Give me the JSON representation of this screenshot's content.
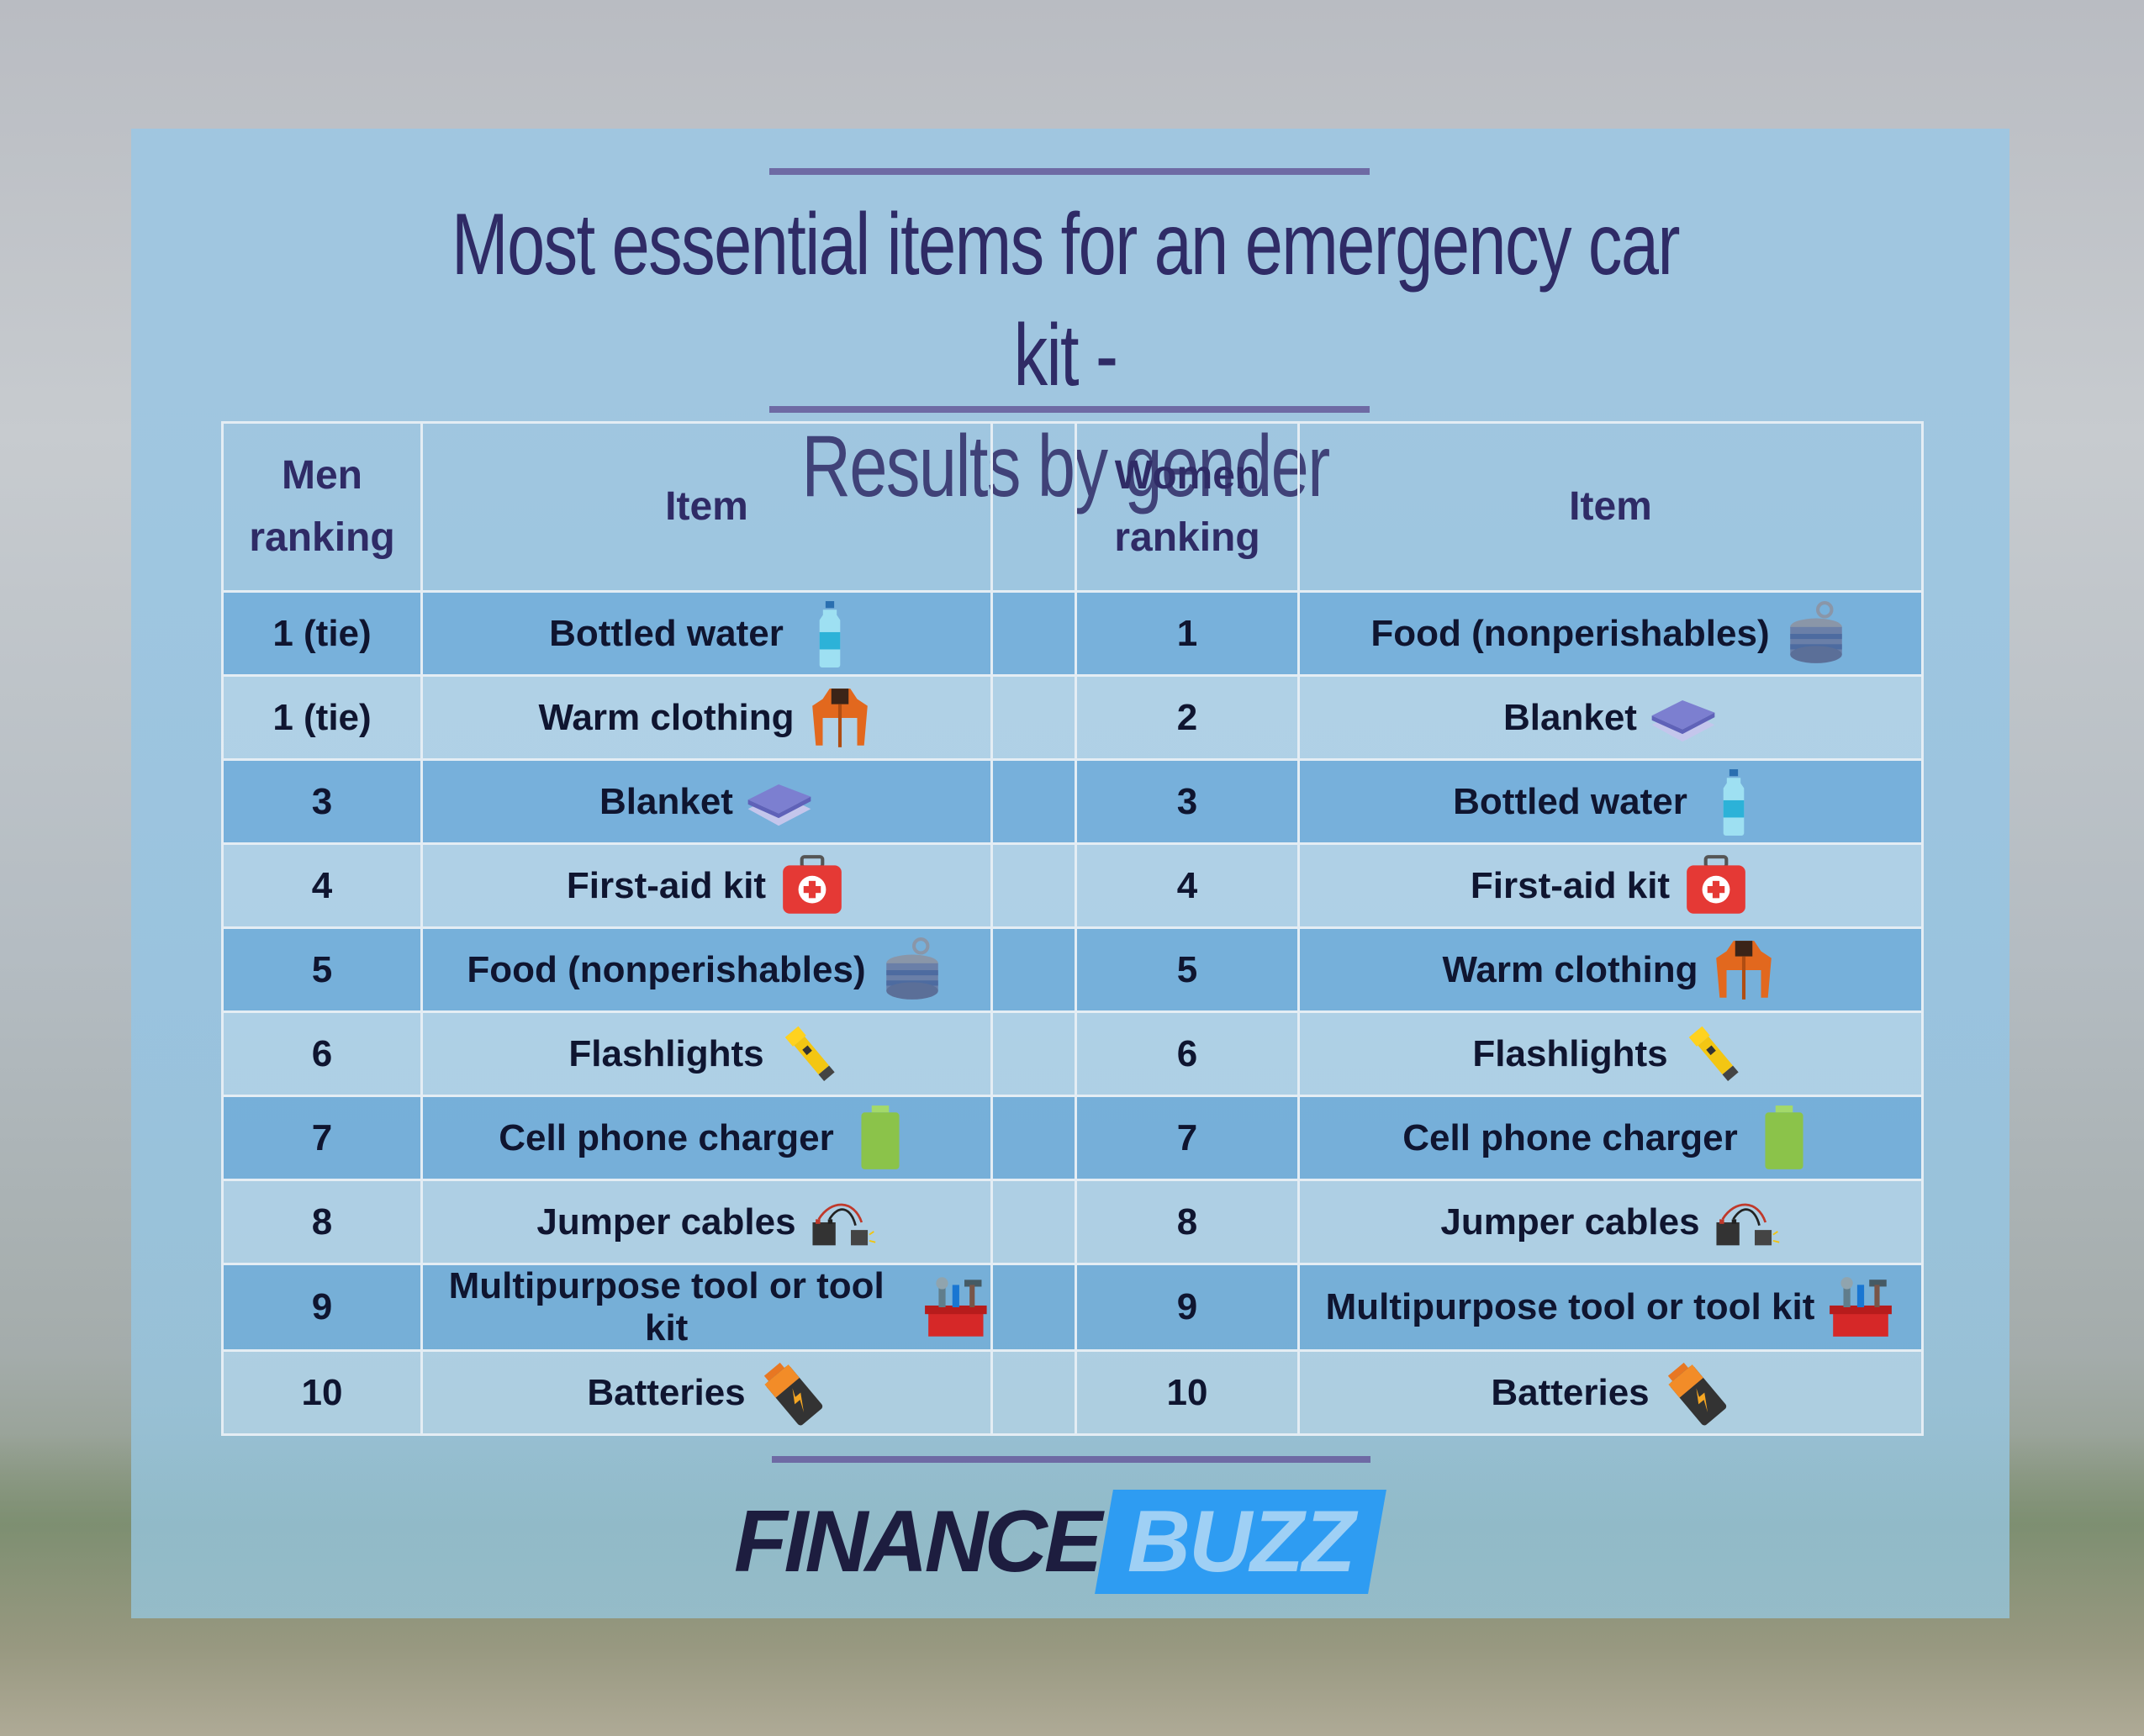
{
  "title": {
    "line1": "Most essential items for an emergency car kit -",
    "line2": "Results by gender"
  },
  "table": {
    "headers": {
      "men_ranking": "Men ranking",
      "men_item": "Item",
      "women_ranking": "Women ranking",
      "women_item": "Item"
    },
    "rows": [
      {
        "men_rank": "1 (tie)",
        "men_item": "Bottled water",
        "men_icon": "water-bottle-icon",
        "women_rank": "1",
        "women_item": "Food (nonperishables)",
        "women_icon": "canned-food-icon"
      },
      {
        "men_rank": "1 (tie)",
        "men_item": "Warm clothing",
        "men_icon": "jacket-icon",
        "women_rank": "2",
        "women_item": "Blanket",
        "women_icon": "blanket-icon"
      },
      {
        "men_rank": "3",
        "men_item": "Blanket",
        "men_icon": "blanket-icon",
        "women_rank": "3",
        "women_item": "Bottled water",
        "women_icon": "water-bottle-icon"
      },
      {
        "men_rank": "4",
        "men_item": "First-aid kit",
        "men_icon": "first-aid-kit-icon",
        "women_rank": "4",
        "women_item": "First-aid kit",
        "women_icon": "first-aid-kit-icon"
      },
      {
        "men_rank": "5",
        "men_item": "Food (nonperishables)",
        "men_icon": "canned-food-icon",
        "women_rank": "5",
        "women_item": "Warm clothing",
        "women_icon": "jacket-icon"
      },
      {
        "men_rank": "6",
        "men_item": "Flashlights",
        "men_icon": "flashlight-icon",
        "women_rank": "6",
        "women_item": "Flashlights",
        "women_icon": "flashlight-icon"
      },
      {
        "men_rank": "7",
        "men_item": "Cell phone charger",
        "men_icon": "battery-charger-icon",
        "women_rank": "7",
        "women_item": "Cell phone charger",
        "women_icon": "battery-charger-icon"
      },
      {
        "men_rank": "8",
        "men_item": "Jumper cables",
        "men_icon": "jumper-cables-icon",
        "women_rank": "8",
        "women_item": "Jumper cables",
        "women_icon": "jumper-cables-icon"
      },
      {
        "men_rank": "9",
        "men_item": "Multipurpose tool or tool kit",
        "men_icon": "toolbox-icon",
        "women_rank": "9",
        "women_item": "Multipurpose tool or tool kit",
        "women_icon": "toolbox-icon"
      },
      {
        "men_rank": "10",
        "men_item": "Batteries",
        "men_icon": "battery-icon",
        "women_rank": "10",
        "women_item": "Batteries",
        "women_icon": "battery-icon"
      }
    ]
  },
  "logo": {
    "part1": "FINANCE",
    "part2": "BUZZ"
  },
  "colors": {
    "title": "#2f2b66",
    "rule": "#6e6aa4",
    "logo_dark": "#1d1d3f",
    "logo_blue": "#2e9cf2"
  }
}
